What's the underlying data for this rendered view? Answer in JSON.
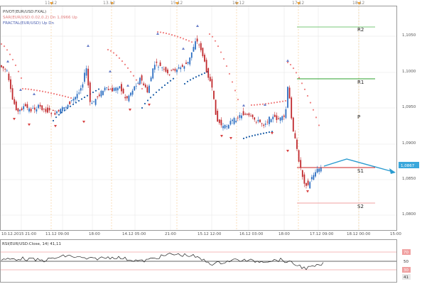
{
  "top_axis": {
    "labels": [
      "11.12",
      "13.12",
      "15.12",
      "16.12",
      "17.12",
      "18.12"
    ]
  },
  "legend": {
    "line1": "PIVOT(EUR/USD:FXAL)",
    "line2": "SAR(EUR/USD:0.02,0.2)   Dn 1,0966 Up",
    "line3": "FRACTAL(EUR/USD)   Up  Dn"
  },
  "colors": {
    "bull": "#2d6fc2",
    "bear": "#c0282c",
    "sar_bear": "#f08080",
    "sar_bull": "#1e5fa8",
    "fractal": "#6a7fc9",
    "pivot_r2": "#7ac97a",
    "pivot_r1": "#2ca02c",
    "pivot_s1": "#cc2222",
    "pivot_s2": "#f0a0a0",
    "arrow": "#2a9bd0",
    "price_tag": "#3aa7dc",
    "grid": "#e6e6e6",
    "rsi_line": "#222222",
    "rsi_band": "#f0a0a0"
  },
  "price_axis": {
    "labels": [
      "1,1050",
      "1,1000",
      "1,0950",
      "1,0900",
      "1,0850",
      "1,0800"
    ],
    "current": "1,0867"
  },
  "pivot_labels": [
    "R2",
    "R1",
    "P",
    "S1",
    "S2"
  ],
  "date_axis": {
    "labels": [
      "10.12.2015 21:00",
      "11.12 09:00",
      "18:00",
      "14.12 05:00",
      "21:00",
      "15.12 12:00",
      "16.12 03:00",
      "18:00",
      "17.12 09:00",
      "18.12 00:00",
      "15:00"
    ]
  },
  "rsi": {
    "title": "RSI(EUR/USD:Close, 14)  41,11",
    "levels": [
      "70",
      "50",
      "30"
    ],
    "current": "41"
  }
}
